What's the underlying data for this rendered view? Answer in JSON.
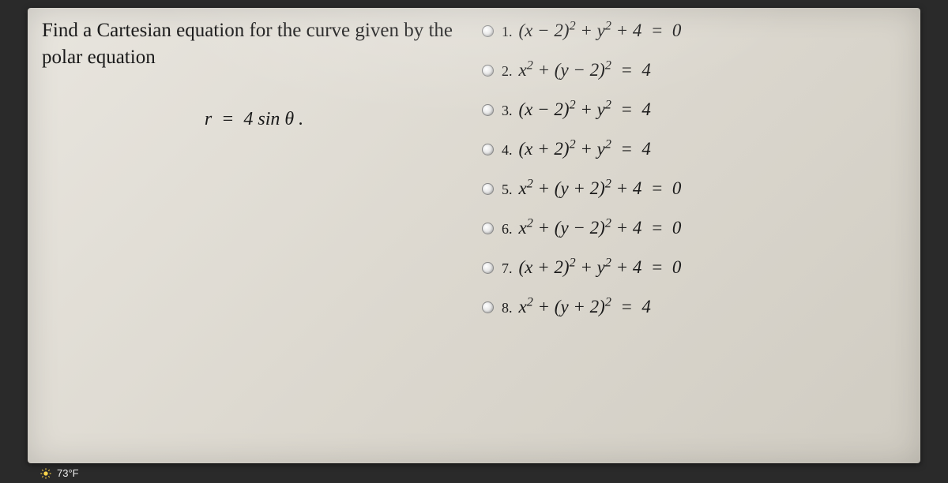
{
  "prompt": {
    "line1": "Find a Cartesian equation for the curve given by the polar equation",
    "equation_html": "r&nbsp;&nbsp;=&nbsp;&nbsp;4 sin θ ."
  },
  "options": [
    {
      "num": "1.",
      "math_html": "(x − 2)<sup>2</sup> + y<sup>2</sup> + 4&nbsp;&nbsp;=&nbsp;&nbsp;0"
    },
    {
      "num": "2.",
      "math_html": "x<sup>2</sup> + (y − 2)<sup>2</sup>&nbsp;&nbsp;=&nbsp;&nbsp;4"
    },
    {
      "num": "3.",
      "math_html": "(x − 2)<sup>2</sup> + y<sup>2</sup>&nbsp;&nbsp;=&nbsp;&nbsp;4"
    },
    {
      "num": "4.",
      "math_html": "(x + 2)<sup>2</sup> + y<sup>2</sup>&nbsp;&nbsp;=&nbsp;&nbsp;4"
    },
    {
      "num": "5.",
      "math_html": "x<sup>2</sup> + (y + 2)<sup>2</sup> + 4&nbsp;&nbsp;=&nbsp;&nbsp;0"
    },
    {
      "num": "6.",
      "math_html": "x<sup>2</sup> + (y − 2)<sup>2</sup> + 4&nbsp;&nbsp;=&nbsp;&nbsp;0"
    },
    {
      "num": "7.",
      "math_html": "(x + 2)<sup>2</sup> + y<sup>2</sup> + 4&nbsp;&nbsp;=&nbsp;&nbsp;0"
    },
    {
      "num": "8.",
      "math_html": "x<sup>2</sup> + (y + 2)<sup>2</sup>&nbsp;&nbsp;=&nbsp;&nbsp;4"
    }
  ],
  "taskbar": {
    "weather": "73°F"
  },
  "colors": {
    "screen_bg_start": "#e8e5de",
    "screen_bg_end": "#d0ccc2",
    "text": "#1a1a1a",
    "radio_border": "#888"
  }
}
